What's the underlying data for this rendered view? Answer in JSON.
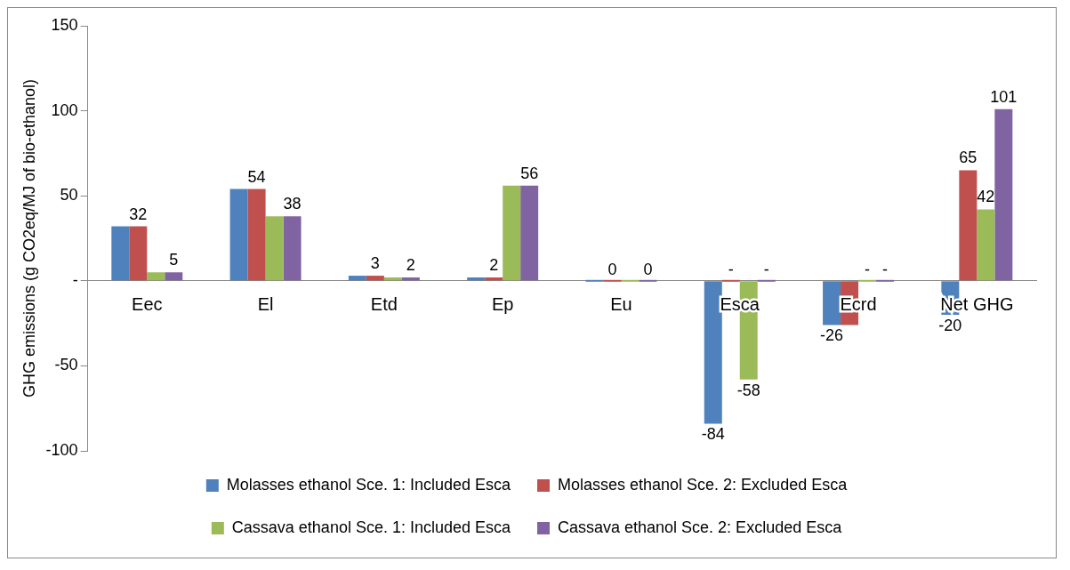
{
  "chart_data": {
    "type": "bar",
    "ylabel": "GHG emissions (g CO2eq/MJ of bio-ethanol)",
    "categories": [
      "Eec",
      "El",
      "Etd",
      "Ep",
      "Eu",
      "Esca",
      "Ecrd",
      "Net GHG"
    ],
    "series": [
      {
        "name": "Molasses ethanol Sce. 1: Included Esca",
        "color": "#4f81bd",
        "values": [
          32,
          54,
          3,
          2,
          0,
          -84,
          -26,
          -20
        ],
        "value_labels": [
          null,
          null,
          null,
          null,
          null,
          "-84",
          "-26",
          "-20"
        ]
      },
      {
        "name": "Molasses ethanol Sce. 2: Excluded Esca",
        "color": "#c0504d",
        "values": [
          32,
          54,
          3,
          2,
          0,
          0,
          -26,
          65
        ],
        "value_labels": [
          "32",
          "54",
          "3",
          "2",
          "0",
          "-",
          null,
          "65"
        ]
      },
      {
        "name": "Cassava ethanol Sce. 1: Included Esca",
        "color": "#9bbb59",
        "values": [
          5,
          38,
          2,
          56,
          0,
          -58,
          0,
          42
        ],
        "value_labels": [
          null,
          null,
          null,
          null,
          null,
          "-58",
          "-",
          "42"
        ]
      },
      {
        "name": "Cassava ethanol Sce. 2: Excluded Esca",
        "color": "#8064a2",
        "values": [
          5,
          38,
          2,
          56,
          0,
          0,
          0,
          101
        ],
        "value_labels": [
          "5",
          "38",
          "2",
          "56",
          "0",
          "-",
          "-",
          "101"
        ]
      }
    ],
    "ylim": [
      -100,
      150
    ],
    "yticks": [
      -100,
      -50,
      {
        "value": 0,
        "label": "-"
      },
      50,
      100,
      150
    ],
    "grid": false,
    "legend": "bottom"
  }
}
